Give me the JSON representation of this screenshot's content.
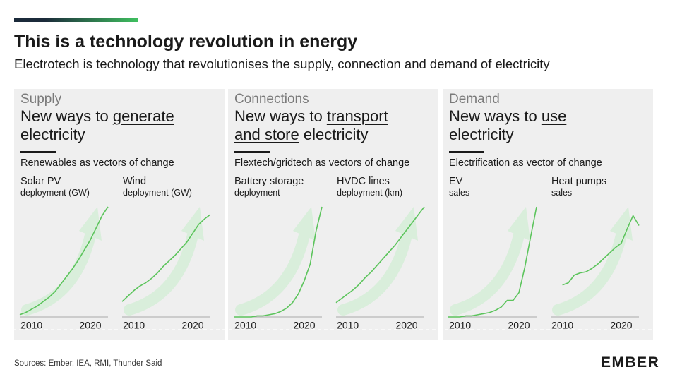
{
  "header": {
    "title": "This is a technology revolution in energy",
    "subtitle": "Electrotech is technology that revolutionises the supply, connection and demand of electricity"
  },
  "panels": [
    {
      "label": "Supply",
      "heading_before": "New ways to ",
      "heading_emphasis": "generate",
      "heading_after": " electricity",
      "caption": "Renewables as vectors of change"
    },
    {
      "label": "Connections",
      "heading_before": "New ways to ",
      "heading_emphasis": "transport and store",
      "heading_after": " electricity",
      "caption": "Flextech/gridtech as vectors of change"
    },
    {
      "label": "Demand",
      "heading_before": "New ways to ",
      "heading_emphasis": "use",
      "heading_after": " electricity",
      "caption": "Electrification as vector of change"
    }
  ],
  "chart_data": [
    {
      "type": "line",
      "title": "Solar PV",
      "subtitle": "deployment (GW)",
      "color": "#5cc45c",
      "xlim": [
        2008,
        2023
      ],
      "ylim": [
        0,
        100
      ],
      "xticks": [
        2010,
        2020
      ],
      "x": [
        2008,
        2009,
        2010,
        2011,
        2012,
        2013,
        2014,
        2015,
        2016,
        2017,
        2018,
        2019,
        2020,
        2021,
        2022,
        2023
      ],
      "values": [
        2,
        4,
        7,
        10,
        14,
        18,
        23,
        30,
        37,
        44,
        52,
        61,
        70,
        81,
        92,
        100
      ]
    },
    {
      "type": "line",
      "title": "Wind",
      "subtitle": "deployment (GW)",
      "color": "#5cc45c",
      "xlim": [
        2008,
        2023
      ],
      "ylim": [
        0,
        100
      ],
      "xticks": [
        2010,
        2020
      ],
      "x": [
        2008,
        2009,
        2010,
        2011,
        2012,
        2013,
        2014,
        2015,
        2016,
        2017,
        2018,
        2019,
        2020,
        2021,
        2022,
        2023
      ],
      "values": [
        14,
        19,
        24,
        28,
        31,
        35,
        40,
        46,
        51,
        56,
        62,
        68,
        76,
        84,
        89,
        93
      ]
    },
    {
      "type": "line",
      "title": "Battery storage",
      "subtitle": "deployment",
      "color": "#5cc45c",
      "xlim": [
        2008,
        2023
      ],
      "ylim": [
        0,
        100
      ],
      "xticks": [
        2010,
        2020
      ],
      "x": [
        2008,
        2009,
        2010,
        2011,
        2012,
        2013,
        2014,
        2015,
        2016,
        2017,
        2018,
        2019,
        2020,
        2021,
        2022,
        2023
      ],
      "values": [
        0,
        0,
        0,
        0,
        1,
        1,
        2,
        3,
        5,
        8,
        13,
        21,
        33,
        48,
        78,
        100
      ]
    },
    {
      "type": "line",
      "title": "HVDC lines",
      "subtitle": "deployment (km)",
      "color": "#5cc45c",
      "xlim": [
        2008,
        2023
      ],
      "ylim": [
        0,
        100
      ],
      "xticks": [
        2010,
        2020
      ],
      "x": [
        2008,
        2009,
        2010,
        2011,
        2012,
        2013,
        2014,
        2015,
        2016,
        2017,
        2018,
        2019,
        2020,
        2021,
        2022,
        2023
      ],
      "values": [
        13,
        17,
        21,
        25,
        30,
        36,
        41,
        47,
        53,
        59,
        65,
        72,
        79,
        86,
        93,
        100
      ]
    },
    {
      "type": "line",
      "title": "EV",
      "subtitle": "sales",
      "color": "#5cc45c",
      "xlim": [
        2008,
        2023
      ],
      "ylim": [
        0,
        100
      ],
      "xticks": [
        2010,
        2020
      ],
      "x": [
        2008,
        2009,
        2010,
        2011,
        2012,
        2013,
        2014,
        2015,
        2016,
        2017,
        2018,
        2019,
        2020,
        2021,
        2022,
        2023
      ],
      "values": [
        0,
        0,
        0,
        1,
        1,
        2,
        3,
        4,
        6,
        9,
        15,
        15,
        22,
        45,
        73,
        100
      ]
    },
    {
      "type": "line",
      "title": "Heat pumps",
      "subtitle": "sales",
      "color": "#5cc45c",
      "xlim": [
        2008,
        2023
      ],
      "ylim": [
        0,
        100
      ],
      "xticks": [
        2010,
        2020
      ],
      "x": [
        2010,
        2011,
        2012,
        2013,
        2014,
        2015,
        2016,
        2017,
        2018,
        2019,
        2020,
        2021,
        2022,
        2023
      ],
      "values": [
        29,
        31,
        38,
        40,
        41,
        44,
        48,
        53,
        58,
        63,
        67,
        80,
        92,
        83
      ]
    }
  ],
  "footer": {
    "sources": "Sources: Ember, IEA, RMI, Thunder Said",
    "logo": "EMBER"
  }
}
